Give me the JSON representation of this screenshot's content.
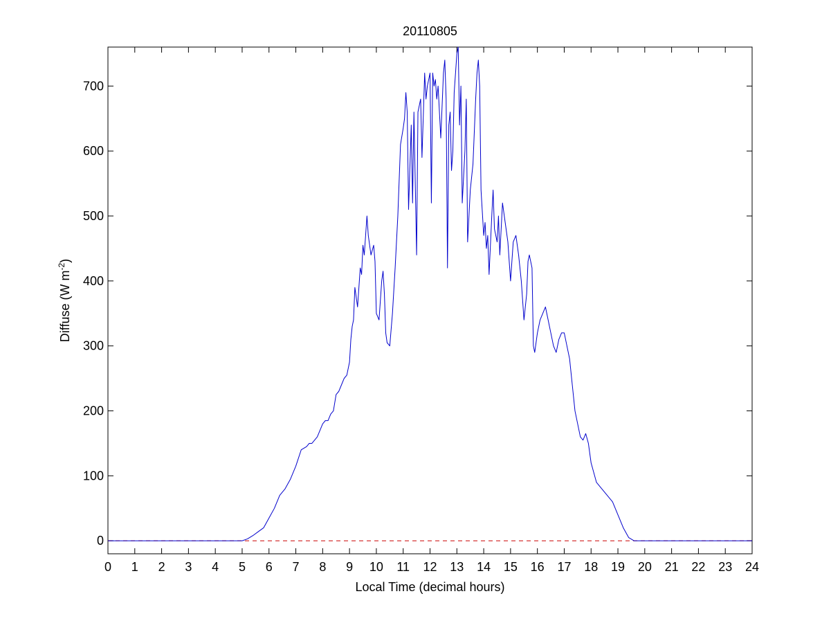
{
  "chart_data": {
    "type": "line",
    "title": "20110805",
    "xlabel": "Local Time (decimal hours)",
    "ylabel_main": "Diffuse (W m",
    "ylabel_superscript": "-2",
    "ylabel_close": ")",
    "xlim": [
      0,
      24
    ],
    "ylim": [
      -20,
      760
    ],
    "xticks": [
      0,
      1,
      2,
      3,
      4,
      5,
      6,
      7,
      8,
      9,
      10,
      11,
      12,
      13,
      14,
      15,
      16,
      17,
      18,
      19,
      20,
      21,
      22,
      23,
      24
    ],
    "yticks": [
      0,
      100,
      200,
      300,
      400,
      500,
      600,
      700
    ],
    "grid": false,
    "series": [
      {
        "color": "#0000cc",
        "style": "solid",
        "x": [
          0,
          5.0,
          5.2,
          5.4,
          5.6,
          5.8,
          6.0,
          6.2,
          6.4,
          6.6,
          6.8,
          7.0,
          7.2,
          7.4,
          7.5,
          7.6,
          7.8,
          8.0,
          8.1,
          8.2,
          8.3,
          8.4,
          8.5,
          8.6,
          8.7,
          8.8,
          8.9,
          9.0,
          9.05,
          9.1,
          9.15,
          9.2,
          9.3,
          9.4,
          9.45,
          9.5,
          9.55,
          9.6,
          9.65,
          9.7,
          9.8,
          9.9,
          9.95,
          10.0,
          10.05,
          10.1,
          10.2,
          10.25,
          10.3,
          10.35,
          10.4,
          10.5,
          10.6,
          10.7,
          10.8,
          10.9,
          11.0,
          11.05,
          11.1,
          11.15,
          11.2,
          11.3,
          11.35,
          11.4,
          11.5,
          11.55,
          11.6,
          11.65,
          11.7,
          11.8,
          11.85,
          11.9,
          12.0,
          12.05,
          12.1,
          12.15,
          12.2,
          12.25,
          12.3,
          12.35,
          12.4,
          12.5,
          12.55,
          12.6,
          12.65,
          12.7,
          12.75,
          12.8,
          12.85,
          12.9,
          12.95,
          13.0,
          13.05,
          13.1,
          13.15,
          13.2,
          13.25,
          13.3,
          13.35,
          13.4,
          13.5,
          13.6,
          13.7,
          13.75,
          13.8,
          13.85,
          13.9,
          14.0,
          14.05,
          14.1,
          14.15,
          14.2,
          14.3,
          14.35,
          14.4,
          14.5,
          14.55,
          14.6,
          14.7,
          14.8,
          14.9,
          15.0,
          15.1,
          15.2,
          15.3,
          15.4,
          15.5,
          15.6,
          15.65,
          15.7,
          15.8,
          15.85,
          15.9,
          16.0,
          16.1,
          16.2,
          16.3,
          16.4,
          16.5,
          16.6,
          16.7,
          16.8,
          16.9,
          17.0,
          17.1,
          17.2,
          17.3,
          17.4,
          17.5,
          17.6,
          17.7,
          17.8,
          17.9,
          18.0,
          18.2,
          18.4,
          18.6,
          18.8,
          19.0,
          19.2,
          19.4,
          19.6,
          24
        ],
        "y": [
          0,
          0,
          3,
          8,
          14,
          20,
          35,
          50,
          70,
          80,
          95,
          115,
          140,
          145,
          150,
          150,
          160,
          180,
          185,
          185,
          195,
          200,
          225,
          230,
          240,
          250,
          255,
          275,
          310,
          330,
          340,
          390,
          360,
          420,
          410,
          455,
          440,
          470,
          500,
          470,
          440,
          455,
          430,
          350,
          345,
          340,
          400,
          415,
          380,
          320,
          305,
          300,
          350,
          420,
          500,
          610,
          635,
          650,
          690,
          660,
          510,
          640,
          520,
          660,
          440,
          660,
          670,
          680,
          590,
          720,
          680,
          700,
          720,
          520,
          720,
          700,
          710,
          680,
          700,
          660,
          620,
          720,
          740,
          680,
          420,
          640,
          660,
          570,
          600,
          690,
          720,
          750,
          760,
          640,
          700,
          520,
          560,
          600,
          680,
          460,
          540,
          580,
          680,
          720,
          740,
          700,
          540,
          470,
          490,
          450,
          470,
          410,
          500,
          540,
          480,
          460,
          500,
          440,
          520,
          490,
          460,
          400,
          460,
          470,
          440,
          400,
          340,
          380,
          430,
          440,
          420,
          300,
          290,
          320,
          340,
          350,
          360,
          340,
          320,
          300,
          290,
          310,
          320,
          320,
          300,
          280,
          240,
          200,
          180,
          160,
          155,
          165,
          150,
          120,
          90,
          80,
          70,
          60,
          40,
          20,
          5,
          0,
          0
        ]
      }
    ],
    "reference_line": {
      "y": 0,
      "color": "#cc0000",
      "style": "dashed"
    }
  }
}
